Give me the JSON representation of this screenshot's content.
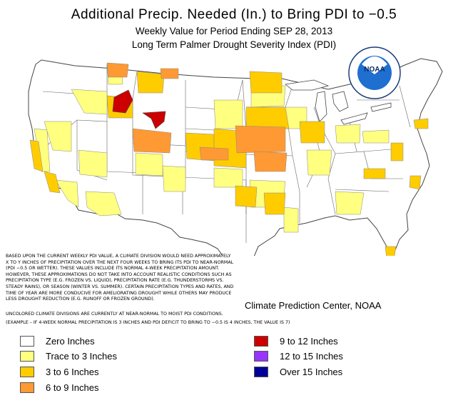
{
  "header": {
    "title": "Additional Precip. Needed (In.) to Bring PDI to −0.5",
    "subtitle_period": "Weekly Value for Period Ending SEP 28, 2013",
    "subtitle_index": "Long Term Palmer Drought Severity Index (PDI)"
  },
  "logo": {
    "label": "NOAA",
    "ring_text": "NATIONAL OCEANIC AND ATMOSPHERIC ADMINISTRATION · U.S. DEPARTMENT OF COMMERCE"
  },
  "notes": {
    "explanation": "BASED UPON THE CURRENT WEEKLY PDI VALUE, A CLIMATE DIVISION WOULD NEED APPROXIMATELY X TO Y INCHES OF PRECIPITATION OVER THE NEXT FOUR WEEKS TO BRING ITS PDI TO NEAR-NORMAL (PDI −0.5 OR WETTER). THESE VALUES INCLUDE ITS NORMAL 4-WEEK PRECIPITATION AMOUNT. HOWEVER, THESE APPROXIMATIONS DO NOT TAKE INTO ACCOUNT REALISTIC CONDITIONS SUCH AS PRECIPITATION TYPE (E.G. FROZEN VS. LIQUID), PRECIPITATION RATE (E.G. THUNDERSTORMS VS. STEADY RAINS), OR SEASON (WINTER VS. SUMMER). CERTAIN PRECIPITATION TYPES AND RATES, AND TIME OF YEAR ARE MORE CONDUCIVE FOR AMELIORATING DROUGHT WHILE OTHERS MAY PRODUCE LESS DROUGHT REDUCTION (E.G. RUNOFF OR FROZEN GROUND).",
    "uncolored": "UNCOLORED CLIMATE DIVISIONS ARE CURRENTLY AT NEAR-NORMAL TO MOIST PDI CONDITIONS.",
    "example": "(EXAMPLE – IF 4-WEEK NORMAL PRECIPITATION IS 3 INCHES AND PDI DEFICIT TO BRING TO −0.5 IS 4 INCHES, THE VALUE IS 7)"
  },
  "credit": "Climate Prediction Center, NOAA",
  "legend": [
    {
      "label": "Zero Inches",
      "color": "#ffffff"
    },
    {
      "label": "Trace to 3 Inches",
      "color": "#ffff80"
    },
    {
      "label": "3 to 6 Inches",
      "color": "#ffcc00"
    },
    {
      "label": "6 to 9 Inches",
      "color": "#ff9933"
    },
    {
      "label": "9 to 12 Inches",
      "color": "#cc0000"
    },
    {
      "label": "12 to 15 Inches",
      "color": "#9933ff"
    },
    {
      "label": "Over 15 Inches",
      "color": "#000099"
    }
  ]
}
